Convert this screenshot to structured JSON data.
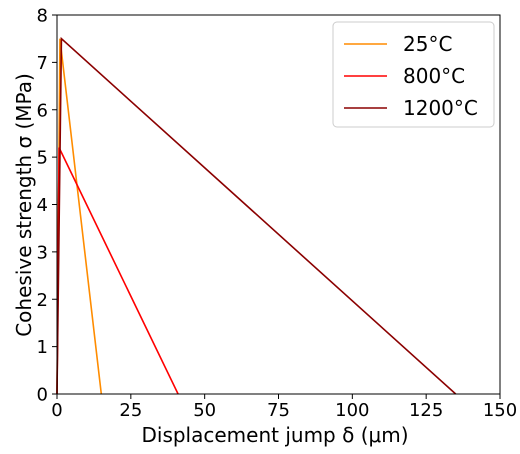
{
  "chart_data": {
    "type": "line",
    "xlabel": "Displacement jump δ (μm)",
    "ylabel": "Cohesive strength σ (MPa)",
    "xlim": [
      0,
      150
    ],
    "ylim": [
      0,
      8
    ],
    "xticks": [
      0,
      25,
      50,
      75,
      100,
      125,
      150
    ],
    "yticks": [
      0,
      1,
      2,
      3,
      4,
      5,
      6,
      7,
      8
    ],
    "grid": false,
    "legend_position": "top-right",
    "series": [
      {
        "name": "25°C",
        "color": "#ff8c00",
        "x": [
          0,
          1.0,
          15
        ],
        "y": [
          0,
          7.5,
          0
        ]
      },
      {
        "name": "800°C",
        "color": "#ff0000",
        "x": [
          0,
          0.7,
          41
        ],
        "y": [
          0,
          5.2,
          0
        ]
      },
      {
        "name": "1200°C",
        "color": "#8b0000",
        "x": [
          0,
          1.5,
          135
        ],
        "y": [
          0,
          7.5,
          0
        ]
      }
    ]
  }
}
